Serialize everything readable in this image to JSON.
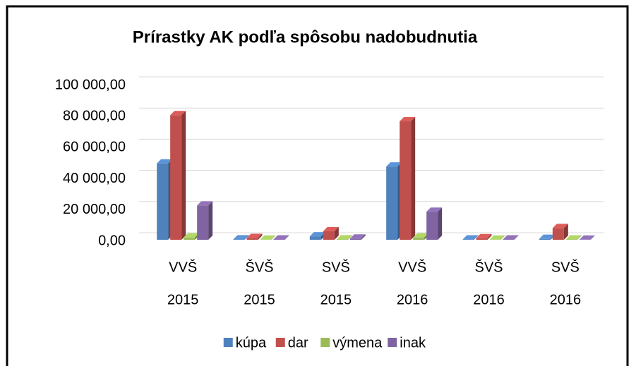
{
  "chart_data": {
    "type": "bar3d",
    "title": "Prírastky AK podľa spôsobu nadobudnutia",
    "categories": [
      [
        "VVŠ",
        "2015"
      ],
      [
        "ŠVŠ",
        "2015"
      ],
      [
        "SVŠ",
        "2015"
      ],
      [
        "VVŠ",
        "2016"
      ],
      [
        "ŠVŠ",
        "2016"
      ],
      [
        "SVŠ",
        "2016"
      ]
    ],
    "series": [
      {
        "name": "kúpa",
        "color": "#4f81bd",
        "values": [
          49000,
          300,
          2200,
          47000,
          200,
          600
        ]
      },
      {
        "name": "dar",
        "color": "#c0504d",
        "values": [
          80000,
          1200,
          5500,
          76000,
          1000,
          7500
        ]
      },
      {
        "name": "výmena",
        "color": "#9bbb59",
        "values": [
          1500,
          100,
          300,
          1500,
          100,
          200
        ]
      },
      {
        "name": "inak",
        "color": "#8064a2",
        "values": [
          22000,
          200,
          800,
          18000,
          200,
          100
        ]
      }
    ],
    "ylim": [
      0,
      100000
    ],
    "yticks": [
      {
        "value": 0,
        "label": "0,00"
      },
      {
        "value": 20000,
        "label": "20 000,00"
      },
      {
        "value": 40000,
        "label": "40 000,00"
      },
      {
        "value": 60000,
        "label": "60 000,00"
      },
      {
        "value": 80000,
        "label": "80 000,00"
      },
      {
        "value": 100000,
        "label": "100 000,00"
      }
    ],
    "grid": true,
    "legend": "bottom"
  }
}
